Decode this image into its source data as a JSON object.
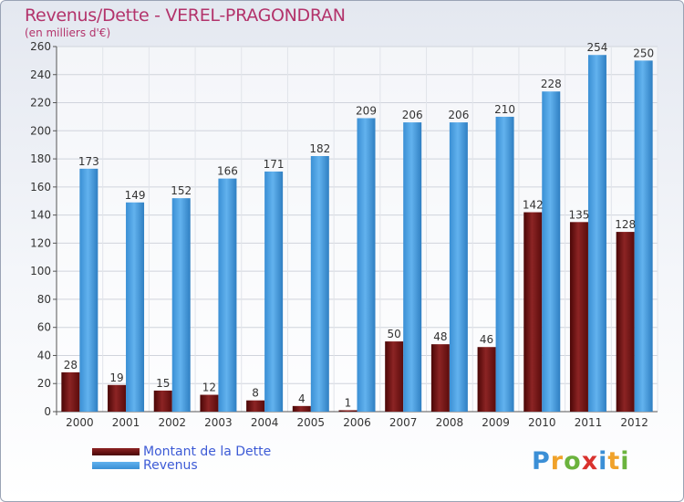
{
  "chart_data": {
    "type": "bar",
    "title": "Revenus/Dette - VEREL-PRAGONDRAN",
    "subtitle": "(en milliers d'€)",
    "categories": [
      "2000",
      "2001",
      "2002",
      "2003",
      "2004",
      "2005",
      "2006",
      "2007",
      "2008",
      "2009",
      "2010",
      "2011",
      "2012"
    ],
    "series": [
      {
        "name": "Montant de la Dette",
        "color": "#7a1a1a",
        "values": [
          28,
          19,
          15,
          12,
          8,
          4,
          1,
          50,
          48,
          46,
          142,
          135,
          128
        ]
      },
      {
        "name": "Revenus",
        "color": "#4a9fe0",
        "values": [
          173,
          149,
          152,
          166,
          171,
          182,
          209,
          206,
          206,
          210,
          228,
          254,
          250
        ]
      }
    ],
    "ylim": [
      0,
      260
    ],
    "yticks": [
      0,
      20,
      40,
      60,
      80,
      100,
      120,
      140,
      160,
      180,
      200,
      220,
      240,
      260
    ],
    "xlabel": "",
    "ylabel": "",
    "grid": true,
    "legend": "bottom-left"
  },
  "logo": {
    "letters": [
      "P",
      "r",
      "o",
      "x",
      "i",
      "t",
      "i"
    ],
    "colors": [
      "#3b8fd6",
      "#f0a22a",
      "#6bb33d",
      "#d9322e",
      "#3b8fd6",
      "#f0a22a",
      "#6bb33d"
    ]
  }
}
